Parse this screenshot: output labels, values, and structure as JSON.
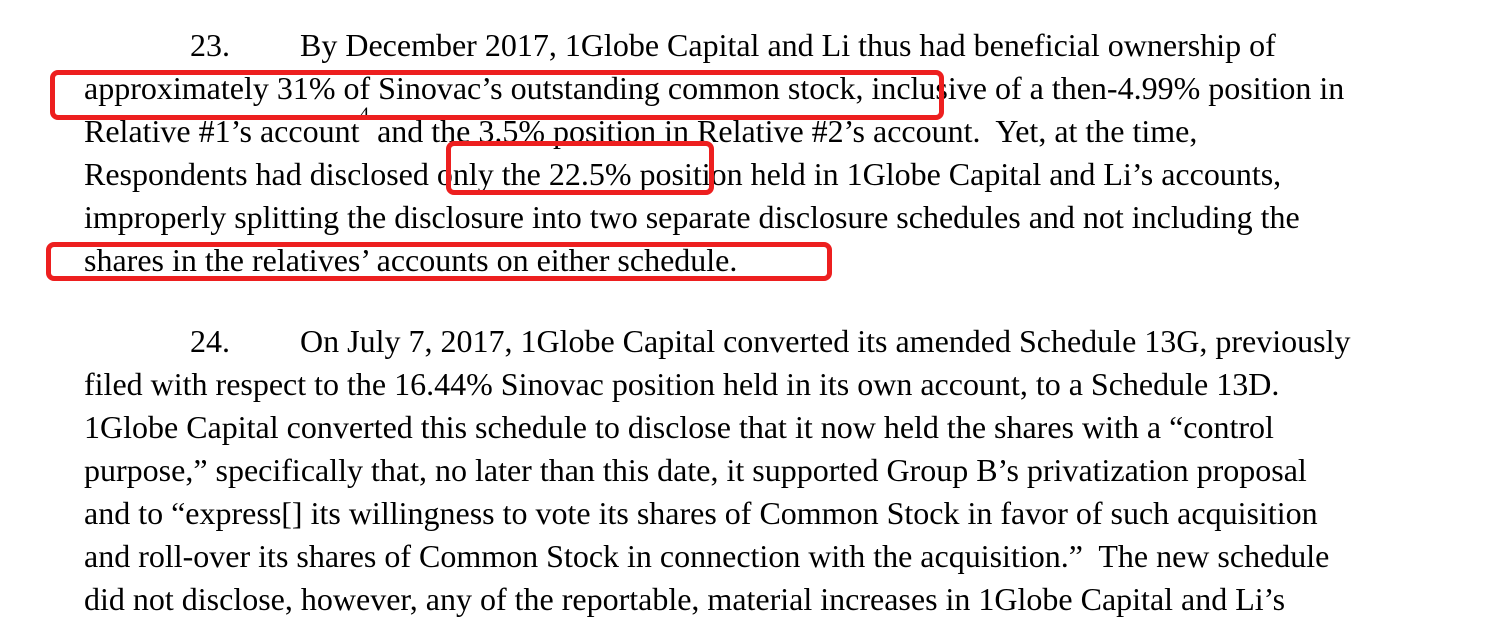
{
  "page": {
    "background_color": "#ffffff",
    "text_color": "#000000"
  },
  "annotation": {
    "color": "#ed1f1f",
    "boxes": [
      {
        "name": "highlight-31-percent",
        "highlighted_text": "approximately 31% of Sinovac’s outstanding common stock,",
        "style": "left:50px;top:70px;width:894px;height:50px;"
      },
      {
        "name": "highlight-22-5-percent",
        "highlighted_text": "only the 22.5%",
        "style": "left:446px;top:141px;width:268px;height:54px;"
      },
      {
        "name": "highlight-relatives-accounts",
        "highlighted_text": "shares in the relatives’ accounts on either schedule.",
        "style": "left:46px;top:242px;width:786px;height:39px;"
      }
    ]
  },
  "paragraph23": {
    "number": "23.",
    "lines": {
      "l1": "By December 2017, 1Globe Capital and Li thus had beneficial ownership of",
      "l2": "approximately 31% of Sinovac’s outstanding common stock, inclusive of a then-4.99% position in",
      "l3_pre": "Relative #1’s account",
      "l3_sup": "4",
      "l3_post": " and the 3.5% position in Relative #2’s account.  Yet, at the time,",
      "l4": "Respondents had disclosed only the 22.5% position held in 1Globe Capital and Li’s accounts,",
      "l5": "improperly splitting the disclosure into two separate disclosure schedules and not including the",
      "l6": "shares in the relatives’ accounts on either schedule."
    }
  },
  "paragraph24": {
    "number": "24.",
    "lines": {
      "l1": "On July 7, 2017, 1Globe Capital converted its amended Schedule 13G, previously",
      "l2": "filed with respect to the 16.44% Sinovac position held in its own account, to a Schedule 13D.",
      "l3": "1Globe Capital converted this schedule to disclose that it now held the shares with a “control",
      "l4": "purpose,” specifically that, no later than this date, it supported Group B’s privatization proposal",
      "l5": "and to “express[] its willingness to vote its shares of Common Stock in favor of such acquisition",
      "l6": "and roll-over its shares of Common Stock in connection with the acquisition.”  The new schedule",
      "l7": "did not disclose, however, any of the reportable, material increases in 1Globe Capital and Li’s"
    }
  }
}
